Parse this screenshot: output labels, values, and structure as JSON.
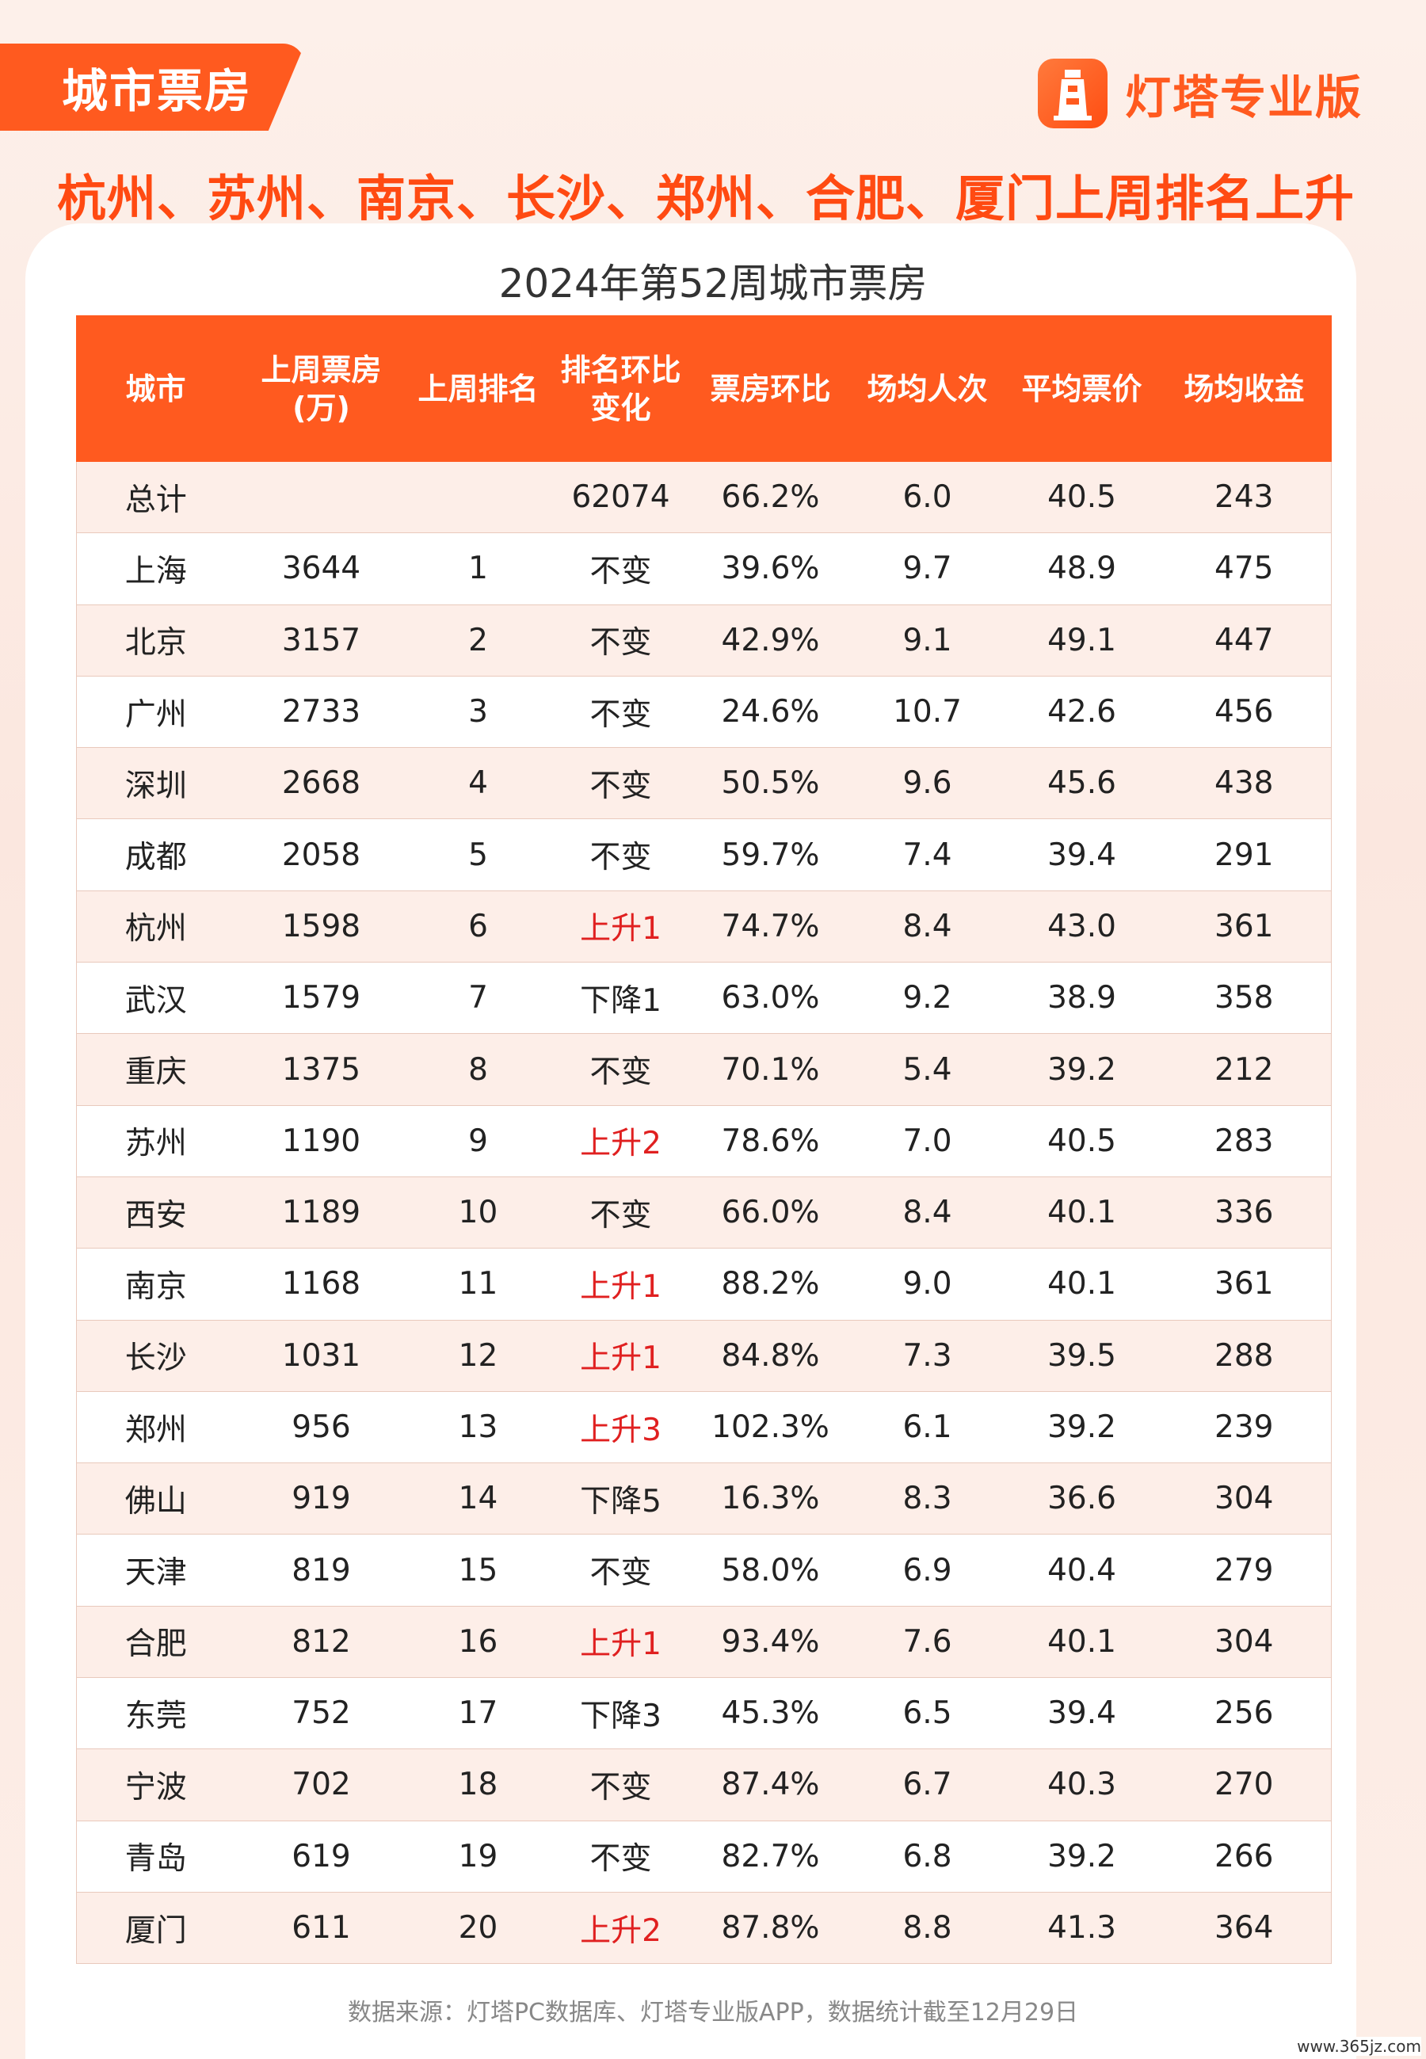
{
  "tag_label": "城市票房",
  "brand": {
    "name": "灯塔专业版",
    "logo_icon": "lighthouse-icon"
  },
  "headline": "杭州、苏州、南京、长沙、郑州、合肥、厦门上周排名上升",
  "table": {
    "title": "2024年第52周城市票房",
    "headers": [
      "城市",
      "上周票房\n(万)",
      "上周排名",
      "排名环比\n变化",
      "票房环比",
      "场均人次",
      "平均票价",
      "场均收益"
    ],
    "rows": [
      [
        "总计",
        "",
        "",
        "62074",
        "66.2%",
        "6.0",
        "40.5",
        "243"
      ],
      [
        "上海",
        "3644",
        "1",
        "不变",
        "39.6%",
        "9.7",
        "48.9",
        "475"
      ],
      [
        "北京",
        "3157",
        "2",
        "不变",
        "42.9%",
        "9.1",
        "49.1",
        "447"
      ],
      [
        "广州",
        "2733",
        "3",
        "不变",
        "24.6%",
        "10.7",
        "42.6",
        "456"
      ],
      [
        "深圳",
        "2668",
        "4",
        "不变",
        "50.5%",
        "9.6",
        "45.6",
        "438"
      ],
      [
        "成都",
        "2058",
        "5",
        "不变",
        "59.7%",
        "7.4",
        "39.4",
        "291"
      ],
      [
        "杭州",
        "1598",
        "6",
        "上升1",
        "74.7%",
        "8.4",
        "43.0",
        "361"
      ],
      [
        "武汉",
        "1579",
        "7",
        "下降1",
        "63.0%",
        "9.2",
        "38.9",
        "358"
      ],
      [
        "重庆",
        "1375",
        "8",
        "不变",
        "70.1%",
        "5.4",
        "39.2",
        "212"
      ],
      [
        "苏州",
        "1190",
        "9",
        "上升2",
        "78.6%",
        "7.0",
        "40.5",
        "283"
      ],
      [
        "西安",
        "1189",
        "10",
        "不变",
        "66.0%",
        "8.4",
        "40.1",
        "336"
      ],
      [
        "南京",
        "1168",
        "11",
        "上升1",
        "88.2%",
        "9.0",
        "40.1",
        "361"
      ],
      [
        "长沙",
        "1031",
        "12",
        "上升1",
        "84.8%",
        "7.3",
        "39.5",
        "288"
      ],
      [
        "郑州",
        "956",
        "13",
        "上升3",
        "102.3%",
        "6.1",
        "39.2",
        "239"
      ],
      [
        "佛山",
        "919",
        "14",
        "下降5",
        "16.3%",
        "8.3",
        "36.6",
        "304"
      ],
      [
        "天津",
        "819",
        "15",
        "不变",
        "58.0%",
        "6.9",
        "40.4",
        "279"
      ],
      [
        "合肥",
        "812",
        "16",
        "上升1",
        "93.4%",
        "7.6",
        "40.1",
        "304"
      ],
      [
        "东莞",
        "752",
        "17",
        "下降3",
        "45.3%",
        "6.5",
        "39.4",
        "256"
      ],
      [
        "宁波",
        "702",
        "18",
        "不变",
        "87.4%",
        "6.7",
        "40.3",
        "270"
      ],
      [
        "青岛",
        "619",
        "19",
        "不变",
        "82.7%",
        "6.8",
        "39.2",
        "266"
      ],
      [
        "厦门",
        "611",
        "20",
        "上升2",
        "87.8%",
        "8.8",
        "41.3",
        "364"
      ]
    ]
  },
  "source_note": "数据来源：灯塔PC数据库、灯塔专业版APP，数据统计截至12月29日",
  "watermark": "www.365jz.com",
  "colors": {
    "accent": "#ff5a1f",
    "rise": "#e02020"
  }
}
